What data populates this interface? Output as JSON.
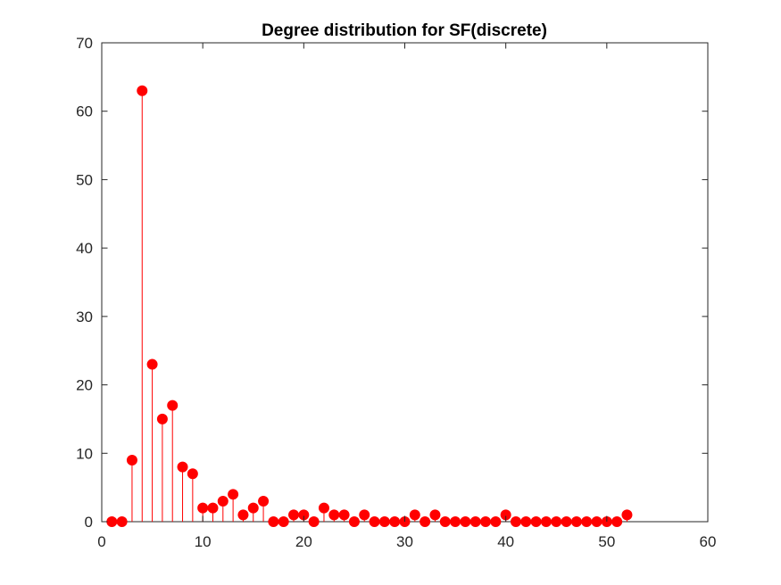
{
  "chart_data": {
    "type": "stem",
    "title": "Degree distribution for SF(discrete)",
    "xlabel": "",
    "ylabel": "",
    "xlim": [
      0,
      60
    ],
    "ylim": [
      0,
      70
    ],
    "xticks": [
      0,
      10,
      20,
      30,
      40,
      50,
      60
    ],
    "yticks": [
      0,
      10,
      20,
      30,
      40,
      50,
      60,
      70
    ],
    "grid": false,
    "legend": "none",
    "color": "#ff0000",
    "x": [
      1,
      2,
      3,
      4,
      5,
      6,
      7,
      8,
      9,
      10,
      11,
      12,
      13,
      14,
      15,
      16,
      17,
      18,
      19,
      20,
      21,
      22,
      23,
      24,
      25,
      26,
      27,
      28,
      29,
      30,
      31,
      32,
      33,
      34,
      35,
      36,
      37,
      38,
      39,
      40,
      41,
      42,
      43,
      44,
      45,
      46,
      47,
      48,
      49,
      50,
      51,
      52
    ],
    "values": [
      0,
      0,
      9,
      63,
      23,
      15,
      17,
      8,
      7,
      2,
      2,
      3,
      4,
      1,
      2,
      3,
      0,
      0,
      1,
      1,
      0,
      2,
      1,
      1,
      0,
      1,
      0,
      0,
      0,
      0,
      1,
      0,
      1,
      0,
      0,
      0,
      0,
      0,
      0,
      1,
      0,
      0,
      0,
      0,
      0,
      0,
      0,
      0,
      0,
      0,
      0,
      1
    ]
  }
}
